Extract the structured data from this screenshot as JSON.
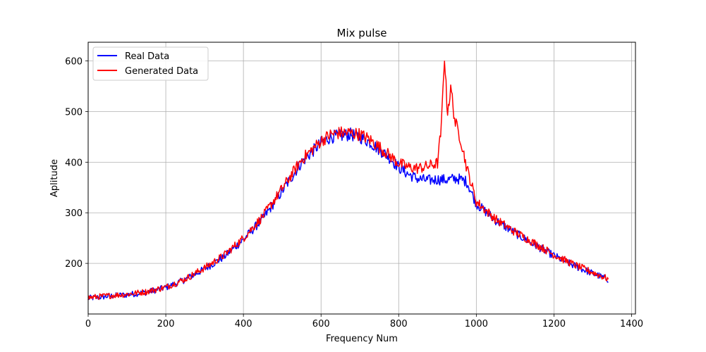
{
  "chart_data": {
    "type": "line",
    "title": "Mix pulse",
    "xlabel": "Frequency Num",
    "ylabel": "Aplitude",
    "xlim": [
      0,
      1410
    ],
    "ylim": [
      100,
      637
    ],
    "xticks": [
      0,
      200,
      400,
      600,
      800,
      1000,
      1200,
      1400
    ],
    "yticks": [
      200,
      300,
      400,
      500,
      600
    ],
    "grid": true,
    "legend_position": "top-left",
    "series": [
      {
        "name": "Real Data",
        "color": "#0000ff",
        "x": [
          0,
          50,
          100,
          150,
          200,
          250,
          300,
          350,
          400,
          450,
          500,
          550,
          600,
          625,
          650,
          675,
          700,
          725,
          750,
          775,
          800,
          825,
          850,
          875,
          900,
          925,
          950,
          975,
          1000,
          1050,
          1100,
          1150,
          1200,
          1250,
          1300,
          1340
        ],
        "y": [
          131,
          135,
          138,
          143,
          152,
          168,
          189,
          213,
          247,
          288,
          343,
          400,
          438,
          450,
          452,
          455,
          450,
          440,
          425,
          410,
          390,
          376,
          367,
          364,
          366,
          365,
          368,
          362,
          318,
          285,
          260,
          237,
          215,
          196,
          180,
          168
        ]
      },
      {
        "name": "Generated Data",
        "color": "#ff0000",
        "x": [
          0,
          50,
          100,
          150,
          200,
          250,
          300,
          350,
          400,
          450,
          500,
          550,
          600,
          625,
          650,
          675,
          700,
          725,
          750,
          775,
          800,
          825,
          850,
          875,
          900,
          910,
          918,
          925,
          935,
          945,
          960,
          975,
          1000,
          1050,
          1100,
          1150,
          1200,
          1250,
          1300,
          1340
        ],
        "y": [
          132,
          136,
          139,
          144,
          153,
          169,
          191,
          216,
          250,
          293,
          348,
          405,
          442,
          455,
          458,
          458,
          455,
          445,
          430,
          414,
          398,
          390,
          388,
          392,
          398,
          470,
          613,
          500,
          545,
          480,
          445,
          390,
          322,
          287,
          262,
          240,
          217,
          198,
          182,
          169
        ]
      }
    ]
  }
}
